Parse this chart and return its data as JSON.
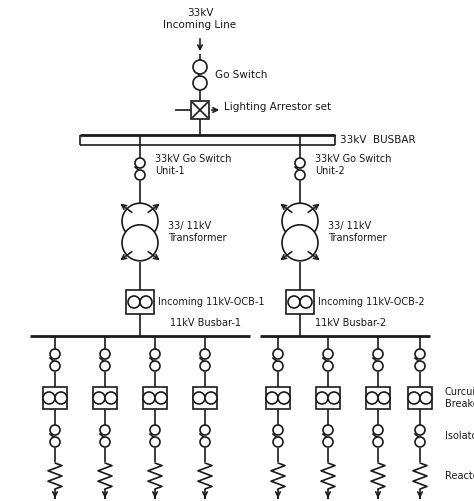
{
  "bg_color": "#ffffff",
  "line_color": "#1a1a1a",
  "text_color": "#1a1a1a",
  "fig_width": 4.74,
  "fig_height": 5.01,
  "dpi": 100,
  "labels": {
    "incoming_line": "33kV\nIncoming Line",
    "go_switch": "Go Switch",
    "lighting_arrestor": "Lighting Arrestor set",
    "busbar_33kv": "33kV  BUSBAR",
    "go_switch_unit1": "33kV Go Switch\nUnit-1",
    "go_switch_unit2": "33kV Go Switch\nUnit-2",
    "transformer1": "33/ 11kV\nTransformer",
    "transformer2": "33/ 11kV\nTransformer",
    "ocb1": "Incoming 11kV-OCB-1",
    "ocb2": "Incoming 11kV-OCB-2",
    "busbar1": "11kV Busbar-1",
    "busbar2": "11kV Busbar-2",
    "circuit_breaker": "Curcuit\nBreaker",
    "isolator": "Isolator",
    "reactor": "Reactor"
  }
}
